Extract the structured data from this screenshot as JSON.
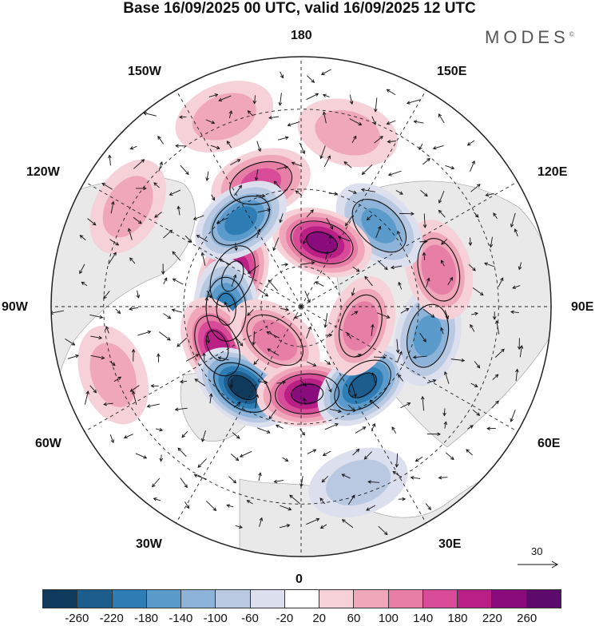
{
  "header": {
    "title": "Base 16/09/2025 00 UTC, valid 16/09/2025 12 UTC",
    "brand": "MODES",
    "brand_mark": "©"
  },
  "map": {
    "projection": "north-polar-stereographic",
    "longitude_labels": {
      "top": "180",
      "bottom": "0",
      "left": "90W",
      "right": "90E",
      "upper_left_1": "150W",
      "upper_left_2": "120W",
      "lower_left_1": "60W",
      "lower_left_2": "30W",
      "upper_right_1": "150E",
      "upper_right_2": "120E",
      "lower_right_1": "60E",
      "lower_right_2": "30E"
    },
    "anomaly_centres": [
      {
        "lon": -114,
        "r": 0.3,
        "value": 240
      },
      {
        "lon": -88,
        "r": 0.3,
        "value": -200
      },
      {
        "lon": -65,
        "r": 0.37,
        "value": 200
      },
      {
        "lon": -36,
        "r": 0.4,
        "value": -280
      },
      {
        "lon": -38,
        "r": 0.17,
        "value": 120
      },
      {
        "lon": 4,
        "r": 0.35,
        "value": 240
      },
      {
        "lon": 38,
        "r": 0.4,
        "value": -220
      },
      {
        "lon": 72,
        "r": 0.25,
        "value": 120
      },
      {
        "lon": 77,
        "r": 0.52,
        "value": -140
      },
      {
        "lon": 105,
        "r": 0.57,
        "value": 100
      },
      {
        "lon": 136,
        "r": 0.45,
        "value": -160
      },
      {
        "lon": 162,
        "r": 0.27,
        "value": 220
      },
      {
        "lon": -162,
        "r": 0.52,
        "value": 160
      },
      {
        "lon": -145,
        "r": 0.42,
        "value": -180
      },
      {
        "lon": -158,
        "r": 0.82,
        "value": 60
      },
      {
        "lon": 165,
        "r": 0.72,
        "value": 60
      },
      {
        "lon": -120,
        "r": 0.8,
        "value": 60
      },
      {
        "lon": -70,
        "r": 0.8,
        "value": 80
      },
      {
        "lon": 18,
        "r": 0.74,
        "value": -80
      }
    ]
  },
  "legend": {
    "levels": [
      "-260",
      "-220",
      "-180",
      "-140",
      "-100",
      "-60",
      "-20",
      "20",
      "60",
      "100",
      "140",
      "180",
      "220",
      "260"
    ],
    "colors": [
      "#0f3a5c",
      "#1c5d8e",
      "#2f7db5",
      "#5a9bcb",
      "#8db3d8",
      "#b9c9e2",
      "#dcdfee",
      "#ffffff",
      "#f6d2d8",
      "#efa7b9",
      "#e77ea6",
      "#d84b98",
      "#ba1f85",
      "#8a0c7c",
      "#5c0a6b"
    ]
  },
  "wind_reference": {
    "value": "30"
  }
}
